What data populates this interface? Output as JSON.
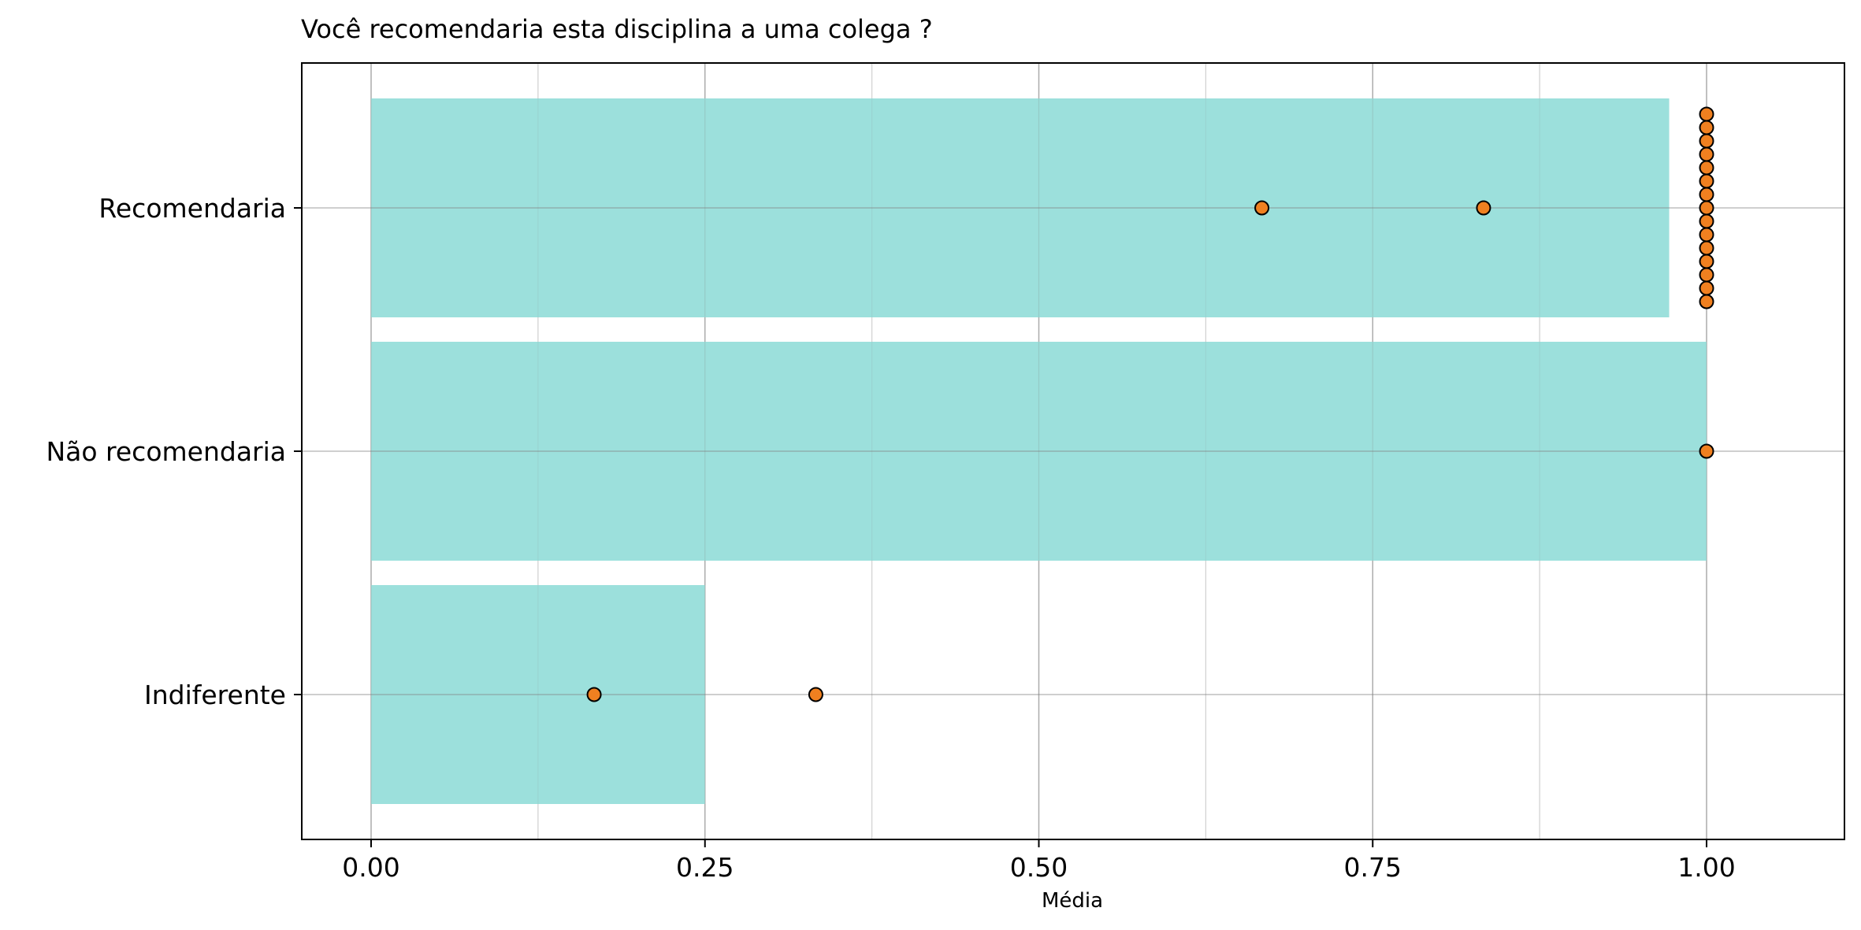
{
  "chart_data": {
    "type": "bar",
    "orientation": "horizontal",
    "title": "Você recomendaria esta disciplina a uma colega ?",
    "xlabel": "Média",
    "ylabel": "",
    "xlim": [
      -0.05,
      1.1
    ],
    "xticks": [
      "0.00",
      "0.25",
      "0.50",
      "0.75",
      "1.00"
    ],
    "xtick_values": [
      0,
      0.25,
      0.5,
      0.75,
      1.0
    ],
    "grid": true,
    "categories": [
      "Recomendaria",
      "Não recomendaria",
      "Indiferente"
    ],
    "values": [
      0.972,
      1.0,
      0.25
    ],
    "points": [
      [
        0.667,
        0.833,
        1.0,
        1.0,
        1.0,
        1.0,
        1.0,
        1.0,
        1.0,
        1.0,
        1.0,
        1.0,
        1.0,
        1.0,
        1.0,
        1.0,
        1.0
      ],
      [
        1.0
      ],
      [
        0.167,
        0.333
      ]
    ],
    "bar_color": "#9ce0dc",
    "point_color": "#f08020",
    "point_edge_color": "#000000"
  }
}
